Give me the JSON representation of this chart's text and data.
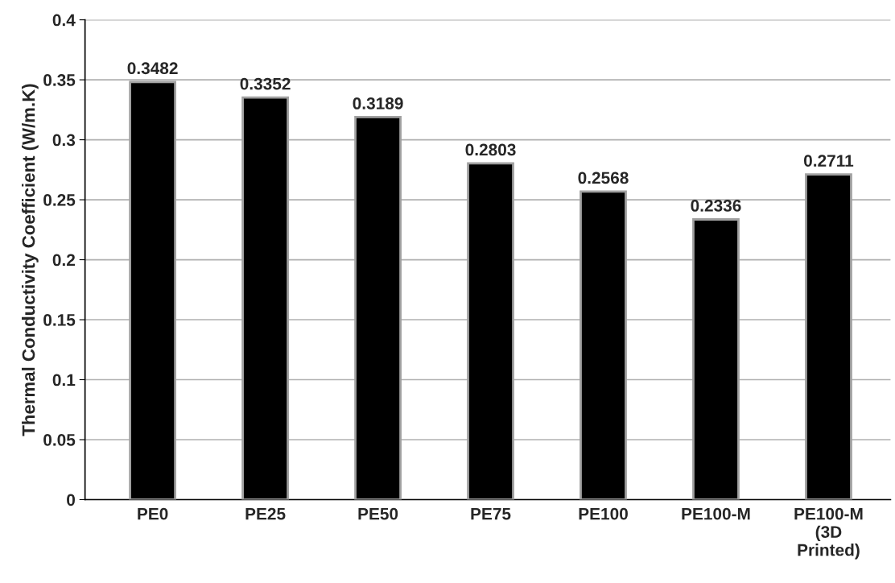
{
  "chart_data": {
    "type": "bar",
    "ylabel": "Thermal Conductivity Coefficient (W/m.K)",
    "categories": [
      "PE0",
      "PE25",
      "PE50",
      "PE75",
      "PE100",
      "PE100-M",
      "PE100-M\n(3D\nPrinted)"
    ],
    "values": [
      0.3482,
      0.3352,
      0.3189,
      0.2803,
      0.2568,
      0.2336,
      0.2711
    ],
    "color": "#000000",
    "ylim": [
      0,
      0.4
    ],
    "yticks": [
      0,
      0.05,
      0.1,
      0.15,
      0.2,
      0.25,
      0.3,
      0.35,
      0.4
    ],
    "grid": "y",
    "data_labels": true
  }
}
